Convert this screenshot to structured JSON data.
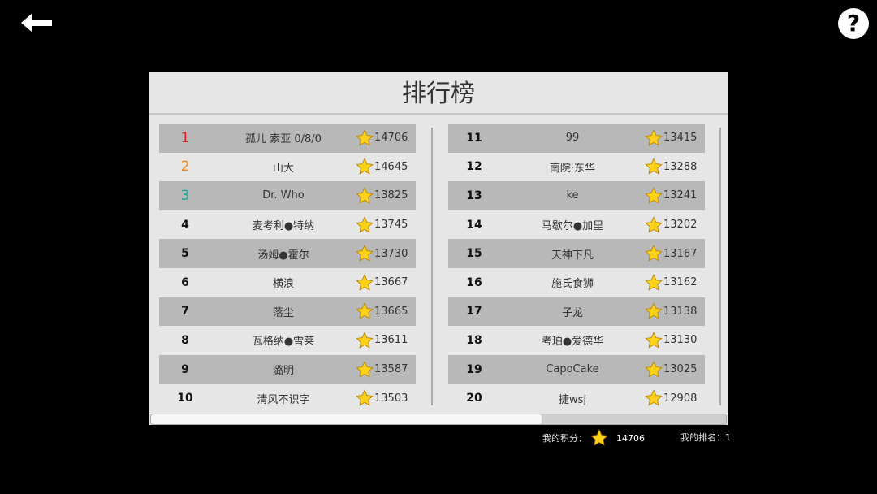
{
  "title": "排行榜",
  "rank_colors": {
    "1": "#d42020",
    "2": "#f08a1c",
    "3": "#1aa39a"
  },
  "entries": [
    {
      "rank": "1",
      "name": "孤儿 索亚 0/8/0",
      "score": "14706"
    },
    {
      "rank": "2",
      "name": "山大",
      "score": "14645"
    },
    {
      "rank": "3",
      "name": "Dr. Who",
      "score": "13825"
    },
    {
      "rank": "4",
      "name": "麦考利●特纳",
      "score": "13745"
    },
    {
      "rank": "5",
      "name": "汤姆●霍尔",
      "score": "13730"
    },
    {
      "rank": "6",
      "name": "横浪",
      "score": "13667"
    },
    {
      "rank": "7",
      "name": "落尘",
      "score": "13665"
    },
    {
      "rank": "8",
      "name": "瓦格纳●雪莱",
      "score": "13611"
    },
    {
      "rank": "9",
      "name": "潞明",
      "score": "13587"
    },
    {
      "rank": "10",
      "name": "清风不识字",
      "score": "13503"
    },
    {
      "rank": "11",
      "name": "99",
      "score": "13415"
    },
    {
      "rank": "12",
      "name": "南院·东华",
      "score": "13288"
    },
    {
      "rank": "13",
      "name": "ke",
      "score": "13241"
    },
    {
      "rank": "14",
      "name": "马歇尔●加里",
      "score": "13202"
    },
    {
      "rank": "15",
      "name": "天神下凡",
      "score": "13167"
    },
    {
      "rank": "16",
      "name": "施氏食狮",
      "score": "13162"
    },
    {
      "rank": "17",
      "name": "子龙",
      "score": "13138"
    },
    {
      "rank": "18",
      "name": "考珀●爱德华",
      "score": "13130"
    },
    {
      "rank": "19",
      "name": "CapoCake",
      "score": "13025"
    },
    {
      "rank": "20",
      "name": "捷wsj",
      "score": "12908"
    }
  ],
  "scroll_fraction": 0.68,
  "footer": {
    "my_score_label": "我的积分：",
    "my_score": "14706",
    "my_rank_label": "我的排名：",
    "my_rank": "1"
  }
}
